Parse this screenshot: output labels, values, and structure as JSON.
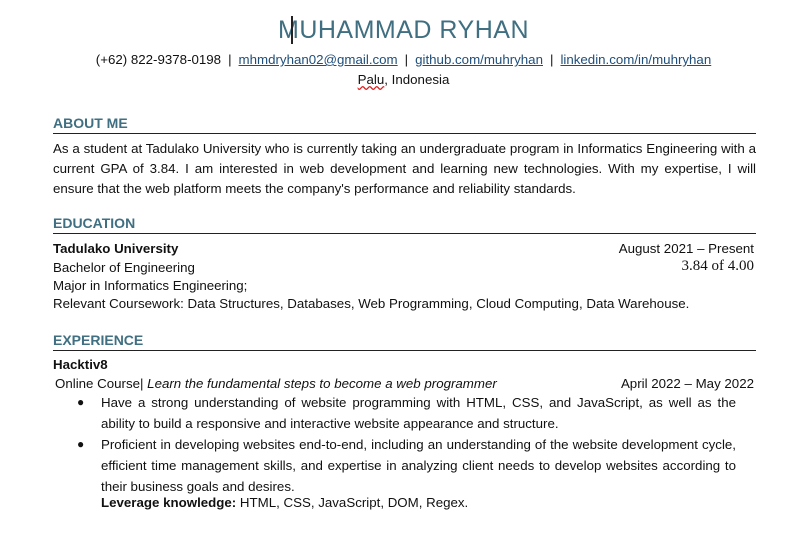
{
  "header": {
    "name": "MUHAMMAD RYHAN",
    "phone": "(+62) 822-9378-0198",
    "email": "mhmdryhan02@gmail.com",
    "github": "github.com/muhryhan",
    "linkedin": "linkedin.com/in/muhryhan",
    "separator": "|",
    "location_city": "Palu",
    "location_rest": ", Indonesia"
  },
  "about": {
    "title": "ABOUT ME",
    "text": "As a student at Tadulako University who is currently taking an undergraduate program in Informatics Engineering with a current GPA of 3.84. I am interested in web development and learning new technologies. With my expertise, I will ensure that the web platform meets the company's performance and reliability standards."
  },
  "education": {
    "title": "EDUCATION",
    "school": "Tadulako University",
    "dates": "August 2021 – Present",
    "degree": "Bachelor of Engineering",
    "gpa": "3.84 of 4.00",
    "major": "Major in Informatics Engineering;",
    "coursework": "Relevant Coursework: Data Structures, Databases, Web Programming, Cloud Computing, Data Warehouse."
  },
  "experience": {
    "title": "EXPERIENCE",
    "company": "Hacktiv8",
    "role": "Online Course",
    "role_sep": "|",
    "description": "Learn the fundamental steps to become a web programmer",
    "dates": "April 2022 – May 2022",
    "bullets": [
      "Have a strong understanding of website programming with HTML, CSS, and JavaScript, as well as the ability to build a responsive and interactive website appearance and structure.",
      "Proficient in developing websites end-to-end, including an understanding of the website development cycle, efficient time management skills, and expertise in analyzing client needs to develop websites according to their business goals and desires."
    ],
    "leverage_label": "Leverage knowledge:",
    "leverage_text": " HTML, CSS, JavaScript, DOM, Regex."
  }
}
